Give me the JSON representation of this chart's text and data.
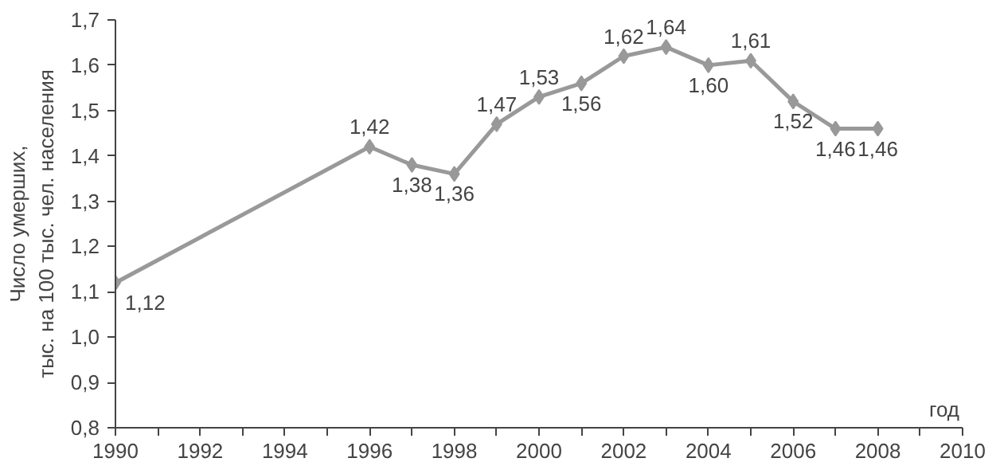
{
  "chart_data": {
    "type": "line",
    "xlabel": "год",
    "ylabel": "Число умерших,\nтыс. на 100 тыс. чел. населения",
    "x": [
      1990,
      1996,
      1997,
      1998,
      1999,
      2000,
      2001,
      2002,
      2003,
      2004,
      2005,
      2006,
      2007,
      2008
    ],
    "series": [
      {
        "color": "#999999",
        "values": [
          1.12,
          1.42,
          1.38,
          1.36,
          1.47,
          1.53,
          1.56,
          1.62,
          1.64,
          1.6,
          1.61,
          1.52,
          1.46,
          1.46
        ],
        "value_labels": [
          "1,12",
          "1,42",
          "1,38",
          "1,36",
          "1,47",
          "1,53",
          "1,56",
          "1,62",
          "1,64",
          "1,60",
          "1,61",
          "1,52",
          "1,46",
          "1,46"
        ]
      }
    ],
    "xlim": [
      1990,
      2010
    ],
    "xticks": [
      1990,
      {
        "value": 1991,
        "label": null
      },
      1992,
      {
        "value": 1993,
        "label": null
      },
      1994,
      {
        "value": 1995,
        "label": null
      },
      1996,
      {
        "value": 1997,
        "label": null
      },
      1998,
      {
        "value": 1999,
        "label": null
      },
      2000,
      {
        "value": 2001,
        "label": null
      },
      2002,
      {
        "value": 2003,
        "label": null
      },
      2004,
      {
        "value": 2005,
        "label": null
      },
      2006,
      {
        "value": 2007,
        "label": null
      },
      2008,
      {
        "value": 2009,
        "label": null
      },
      2010
    ],
    "ylim": [
      0.8,
      1.7
    ],
    "yticks": [
      {
        "value": 0.8,
        "label": "0,8"
      },
      {
        "value": 0.9,
        "label": "0,9"
      },
      {
        "value": 1.0,
        "label": "1,0"
      },
      {
        "value": 1.1,
        "label": "1,1"
      },
      {
        "value": 1.2,
        "label": "1,2"
      },
      {
        "value": 1.3,
        "label": "1,3"
      },
      {
        "value": 1.4,
        "label": "1,4"
      },
      {
        "value": 1.5,
        "label": "1,5"
      },
      {
        "value": 1.6,
        "label": "1,6"
      },
      {
        "value": 1.7,
        "label": "1,7"
      }
    ],
    "grid": false,
    "marker": "diamond",
    "line_style": "solid"
  }
}
